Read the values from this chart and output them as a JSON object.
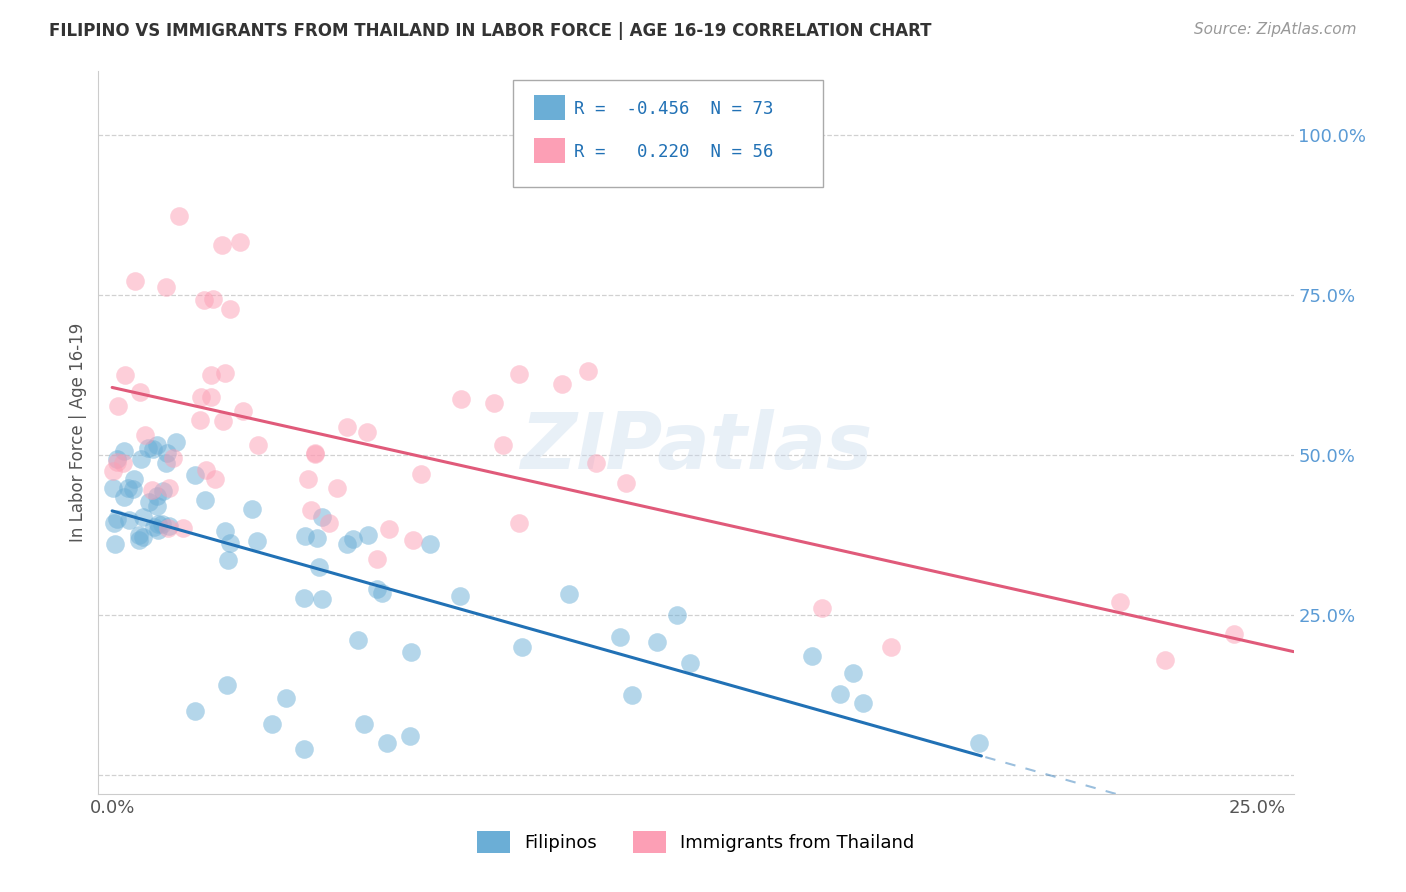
{
  "title": "FILIPINO VS IMMIGRANTS FROM THAILAND IN LABOR FORCE | AGE 16-19 CORRELATION CHART",
  "source": "Source: ZipAtlas.com",
  "ylabel": "In Labor Force | Age 16-19",
  "xlim": [
    -0.003,
    0.258
  ],
  "ylim": [
    -0.03,
    1.1
  ],
  "x_tick_positions": [
    0.0,
    0.25
  ],
  "x_tick_labels": [
    "0.0%",
    "25.0%"
  ],
  "y_tick_positions": [
    0.0,
    0.25,
    0.5,
    0.75,
    1.0
  ],
  "y_tick_labels": [
    "",
    "25.0%",
    "50.0%",
    "75.0%",
    "100.0%"
  ],
  "filipino_color": "#6baed6",
  "thai_color": "#fc9fb5",
  "filipino_line_color": "#2171b5",
  "thai_line_color": "#e05a7a",
  "legend_R_filipino": "-0.456",
  "legend_N_filipino": "73",
  "legend_R_thai": "0.220",
  "legend_N_thai": "56",
  "watermark": "ZIPatlas",
  "filipinos_label": "Filipinos",
  "thai_label": "Immigrants from Thailand",
  "background_color": "#ffffff",
  "grid_color": "#cccccc",
  "title_color": "#333333",
  "axis_label_color": "#555555",
  "right_tick_color": "#5b9bd5",
  "source_color": "#999999",
  "fil_line_solid_end": 0.19,
  "fil_line_dash_end": 0.258,
  "scatter_size": 180,
  "scatter_alpha": 0.5
}
